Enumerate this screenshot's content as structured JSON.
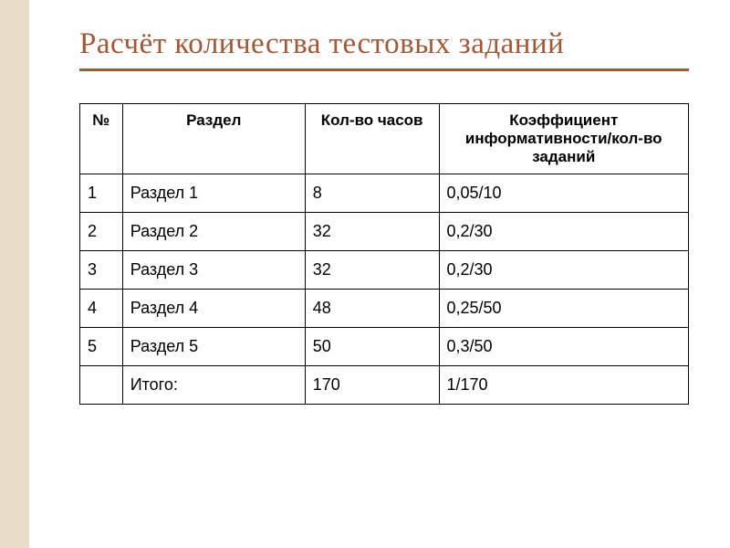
{
  "title": "Расчёт количества тестовых заданий",
  "colors": {
    "sidebar_bg": "#e6ddc4",
    "title_color": "#a05838",
    "underline_color": "#a05838",
    "text_color": "#000000",
    "border_color": "#000000",
    "background": "#ffffff"
  },
  "typography": {
    "title_fontsize": 33,
    "title_font": "Times New Roman",
    "cell_fontsize": 18,
    "header_fontsize": 17
  },
  "table": {
    "columns": [
      "№",
      "Раздел",
      "Кол-во часов",
      "Коэффициент информативности/кол-во заданий"
    ],
    "column_widths_pct": [
      7,
      30,
      22,
      41
    ],
    "rows": [
      [
        "1",
        "Раздел 1",
        "8",
        "0,05/10"
      ],
      [
        "2",
        "Раздел 2",
        "32",
        "0,2/30"
      ],
      [
        "3",
        "Раздел 3",
        "32",
        "0,2/30"
      ],
      [
        "4",
        "Раздел 4",
        "48",
        "0,25/50"
      ],
      [
        "5",
        "Раздел 5",
        "50",
        "0,3/50"
      ],
      [
        "",
        "Итого:",
        "170",
        "1/170"
      ]
    ]
  }
}
